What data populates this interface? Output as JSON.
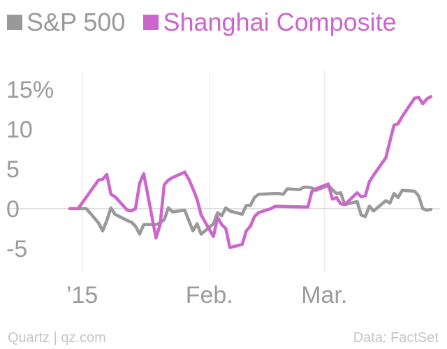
{
  "chart_data": {
    "type": "line",
    "title": "",
    "xlabel": "",
    "ylabel": "",
    "ylim": [
      -8,
      18
    ],
    "xlim": [
      "2014-12-29",
      "2015-03-27"
    ],
    "grid": "vertical",
    "legend_position": "top-left",
    "y_ticks": [
      {
        "value": 15,
        "label": "15%"
      },
      {
        "value": 10,
        "label": "10"
      },
      {
        "value": 5,
        "label": "5"
      },
      {
        "value": 0,
        "label": "0"
      },
      {
        "value": -5,
        "label": "-5"
      }
    ],
    "x_ticks": [
      {
        "date": "2015-01-01",
        "label": "’15"
      },
      {
        "date": "2015-02-01",
        "label": "Feb."
      },
      {
        "date": "2015-03-01",
        "label": "Mar."
      }
    ],
    "series": [
      {
        "name": "S&P 500",
        "color": "#999999",
        "points": [
          {
            "date": "2014-12-31",
            "value": 0.0
          },
          {
            "date": "2015-01-01",
            "value": 0.0
          },
          {
            "date": "2015-01-02",
            "value": 0.0
          },
          {
            "date": "2015-01-05",
            "value": -1.8
          },
          {
            "date": "2015-01-06",
            "value": -2.8
          },
          {
            "date": "2015-01-07",
            "value": -1.5
          },
          {
            "date": "2015-01-08",
            "value": 0.1
          },
          {
            "date": "2015-01-09",
            "value": -0.7
          },
          {
            "date": "2015-01-12",
            "value": -1.5
          },
          {
            "date": "2015-01-13",
            "value": -1.7
          },
          {
            "date": "2015-01-14",
            "value": -2.2
          },
          {
            "date": "2015-01-15",
            "value": -3.2
          },
          {
            "date": "2015-01-16",
            "value": -2.0
          },
          {
            "date": "2015-01-19",
            "value": -2.0
          },
          {
            "date": "2015-01-20",
            "value": -1.8
          },
          {
            "date": "2015-01-21",
            "value": -1.4
          },
          {
            "date": "2015-01-22",
            "value": 0.1
          },
          {
            "date": "2015-01-23",
            "value": -0.4
          },
          {
            "date": "2015-01-26",
            "value": -0.2
          },
          {
            "date": "2015-01-27",
            "value": -1.5
          },
          {
            "date": "2015-01-28",
            "value": -2.8
          },
          {
            "date": "2015-01-29",
            "value": -1.9
          },
          {
            "date": "2015-01-30",
            "value": -3.2
          },
          {
            "date": "2015-02-02",
            "value": -1.9
          },
          {
            "date": "2015-02-03",
            "value": -0.5
          },
          {
            "date": "2015-02-04",
            "value": -0.9
          },
          {
            "date": "2015-02-05",
            "value": 0.1
          },
          {
            "date": "2015-02-06",
            "value": -0.3
          },
          {
            "date": "2015-02-09",
            "value": -0.7
          },
          {
            "date": "2015-02-10",
            "value": 0.4
          },
          {
            "date": "2015-02-11",
            "value": 0.4
          },
          {
            "date": "2015-02-12",
            "value": 1.4
          },
          {
            "date": "2015-02-13",
            "value": 1.8
          },
          {
            "date": "2015-02-17",
            "value": 1.9
          },
          {
            "date": "2015-02-18",
            "value": 1.9
          },
          {
            "date": "2015-02-19",
            "value": 1.8
          },
          {
            "date": "2015-02-20",
            "value": 2.5
          },
          {
            "date": "2015-02-23",
            "value": 2.4
          },
          {
            "date": "2015-02-24",
            "value": 2.7
          },
          {
            "date": "2015-02-25",
            "value": 2.7
          },
          {
            "date": "2015-02-26",
            "value": 2.6
          },
          {
            "date": "2015-02-27",
            "value": 2.3
          },
          {
            "date": "2015-03-02",
            "value": 2.9
          },
          {
            "date": "2015-03-03",
            "value": 2.4
          },
          {
            "date": "2015-03-04",
            "value": 1.9
          },
          {
            "date": "2015-03-05",
            "value": 2.0
          },
          {
            "date": "2015-03-06",
            "value": 0.5
          },
          {
            "date": "2015-03-09",
            "value": 0.9
          },
          {
            "date": "2015-03-10",
            "value": -0.8
          },
          {
            "date": "2015-03-11",
            "value": -1.0
          },
          {
            "date": "2015-03-12",
            "value": 0.3
          },
          {
            "date": "2015-03-13",
            "value": -0.3
          },
          {
            "date": "2015-03-16",
            "value": 1.0
          },
          {
            "date": "2015-03-17",
            "value": 0.7
          },
          {
            "date": "2015-03-18",
            "value": 1.9
          },
          {
            "date": "2015-03-19",
            "value": 1.4
          },
          {
            "date": "2015-03-20",
            "value": 2.3
          },
          {
            "date": "2015-03-23",
            "value": 2.2
          },
          {
            "date": "2015-03-24",
            "value": 1.6
          },
          {
            "date": "2015-03-25",
            "value": 0.0
          },
          {
            "date": "2015-03-26",
            "value": -0.2
          },
          {
            "date": "2015-03-27",
            "value": -0.1
          }
        ]
      },
      {
        "name": "Shanghai Composite",
        "color": "#cc66cc",
        "points": [
          {
            "date": "2014-12-29",
            "value": 0.0
          },
          {
            "date": "2014-12-30",
            "value": 0.0
          },
          {
            "date": "2014-12-31",
            "value": 0.0
          },
          {
            "date": "2015-01-05",
            "value": 3.6
          },
          {
            "date": "2015-01-06",
            "value": 3.7
          },
          {
            "date": "2015-01-07",
            "value": 4.3
          },
          {
            "date": "2015-01-08",
            "value": 1.8
          },
          {
            "date": "2015-01-09",
            "value": 1.5
          },
          {
            "date": "2015-01-12",
            "value": -0.2
          },
          {
            "date": "2015-01-13",
            "value": -0.3
          },
          {
            "date": "2015-01-14",
            "value": 0.0
          },
          {
            "date": "2015-01-15",
            "value": 3.2
          },
          {
            "date": "2015-01-16",
            "value": 4.4
          },
          {
            "date": "2015-01-19",
            "value": -3.7
          },
          {
            "date": "2015-01-20",
            "value": -2.0
          },
          {
            "date": "2015-01-21",
            "value": 3.0
          },
          {
            "date": "2015-01-22",
            "value": 3.6
          },
          {
            "date": "2015-01-23",
            "value": 3.9
          },
          {
            "date": "2015-01-26",
            "value": 4.6
          },
          {
            "date": "2015-01-27",
            "value": 3.7
          },
          {
            "date": "2015-01-28",
            "value": 2.5
          },
          {
            "date": "2015-01-29",
            "value": 1.2
          },
          {
            "date": "2015-01-30",
            "value": -0.8
          },
          {
            "date": "2015-02-02",
            "value": -3.5
          },
          {
            "date": "2015-02-03",
            "value": -1.1
          },
          {
            "date": "2015-02-04",
            "value": -2.0
          },
          {
            "date": "2015-02-05",
            "value": -2.5
          },
          {
            "date": "2015-02-06",
            "value": -4.9
          },
          {
            "date": "2015-02-09",
            "value": -4.5
          },
          {
            "date": "2015-02-10",
            "value": -2.8
          },
          {
            "date": "2015-02-11",
            "value": -2.2
          },
          {
            "date": "2015-02-12",
            "value": -1.0
          },
          {
            "date": "2015-02-13",
            "value": -0.5
          },
          {
            "date": "2015-02-16",
            "value": 0.0
          },
          {
            "date": "2015-02-17",
            "value": 0.3
          },
          {
            "date": "2015-02-25",
            "value": 0.2
          },
          {
            "date": "2015-02-26",
            "value": 2.2
          },
          {
            "date": "2015-02-27",
            "value": 2.5
          },
          {
            "date": "2015-03-02",
            "value": 3.1
          },
          {
            "date": "2015-03-03",
            "value": 1.2
          },
          {
            "date": "2015-03-04",
            "value": 1.4
          },
          {
            "date": "2015-03-05",
            "value": 0.6
          },
          {
            "date": "2015-03-06",
            "value": 0.5
          },
          {
            "date": "2015-03-09",
            "value": 2.0
          },
          {
            "date": "2015-03-10",
            "value": 1.5
          },
          {
            "date": "2015-03-11",
            "value": 1.6
          },
          {
            "date": "2015-03-12",
            "value": 3.4
          },
          {
            "date": "2015-03-13",
            "value": 4.2
          },
          {
            "date": "2015-03-16",
            "value": 6.4
          },
          {
            "date": "2015-03-17",
            "value": 8.5
          },
          {
            "date": "2015-03-18",
            "value": 10.5
          },
          {
            "date": "2015-03-19",
            "value": 10.7
          },
          {
            "date": "2015-03-20",
            "value": 11.6
          },
          {
            "date": "2015-03-23",
            "value": 13.9
          },
          {
            "date": "2015-03-24",
            "value": 14.0
          },
          {
            "date": "2015-03-25",
            "value": 13.2
          },
          {
            "date": "2015-03-26",
            "value": 13.8
          },
          {
            "date": "2015-03-27",
            "value": 14.1
          }
        ]
      }
    ]
  },
  "footer": {
    "source_left": "Quartz | qz.com",
    "source_right": "Data: FactSet"
  }
}
